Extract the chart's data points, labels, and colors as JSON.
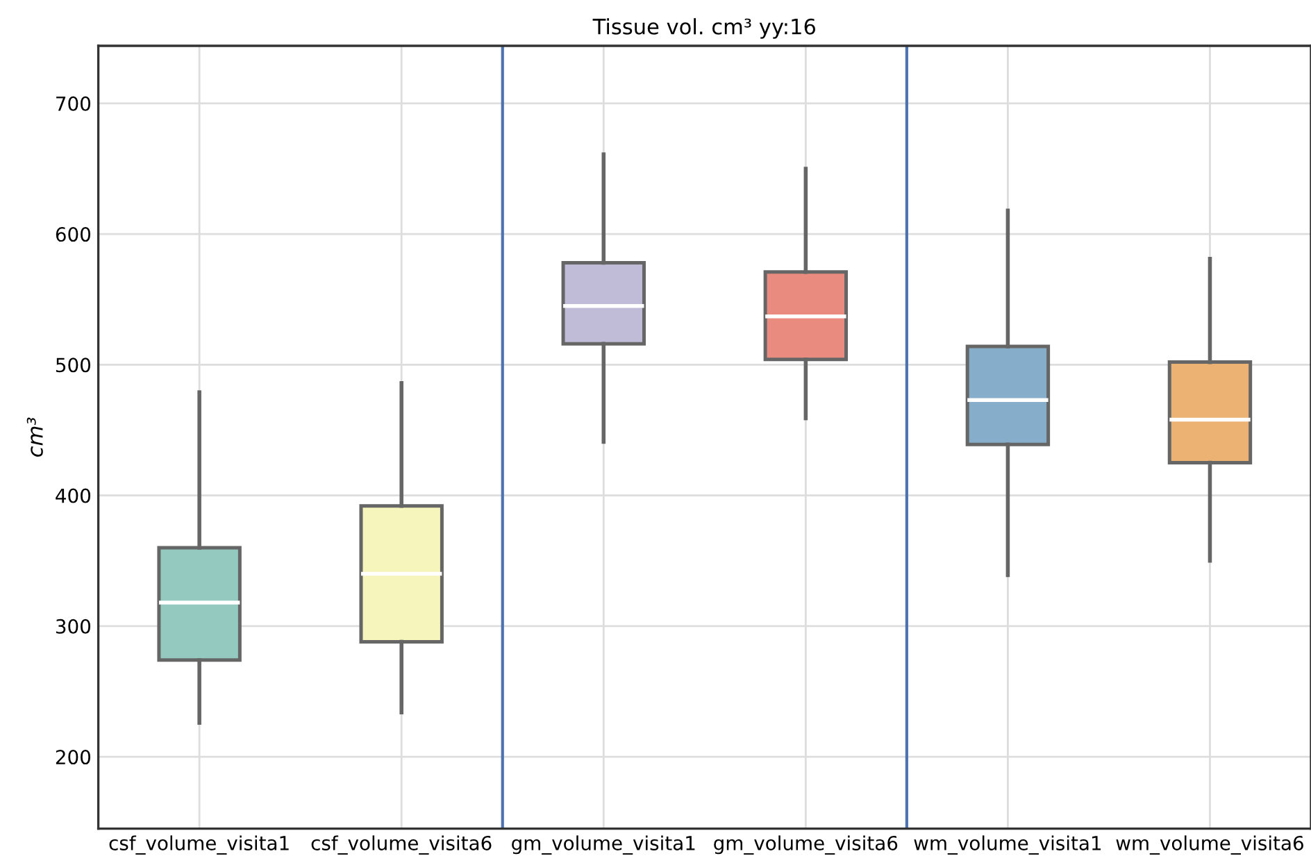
{
  "chart_data": {
    "type": "box",
    "title": "Tissue vol. cm³ yy:16",
    "ylabel": "cm³",
    "categories": [
      "csf_volume_visita1",
      "csf_volume_visita6",
      "gm_volume_visita1",
      "gm_volume_visita6",
      "wm_volume_visita1",
      "wm_volume_visita6"
    ],
    "colors": [
      "#94c9bf",
      "#f5f5bc",
      "#c0bcd8",
      "#ea8b80",
      "#86adc9",
      "#ebb273"
    ],
    "boxes": [
      {
        "low": 226,
        "q1": 274,
        "median": 318,
        "q3": 360,
        "high": 479
      },
      {
        "low": 234,
        "q1": 288,
        "median": 340,
        "q3": 392,
        "high": 486
      },
      {
        "low": 441,
        "q1": 516,
        "median": 545,
        "q3": 578,
        "high": 661
      },
      {
        "low": 459,
        "q1": 504,
        "median": 537,
        "q3": 571,
        "high": 650
      },
      {
        "low": 339,
        "q1": 439,
        "median": 473,
        "q3": 514,
        "high": 618
      },
      {
        "low": 350,
        "q1": 425,
        "median": 458,
        "q3": 502,
        "high": 581
      }
    ],
    "ylim": [
      145,
      744
    ],
    "yticks": [
      200,
      300,
      400,
      500,
      600,
      700
    ],
    "grid": true
  }
}
